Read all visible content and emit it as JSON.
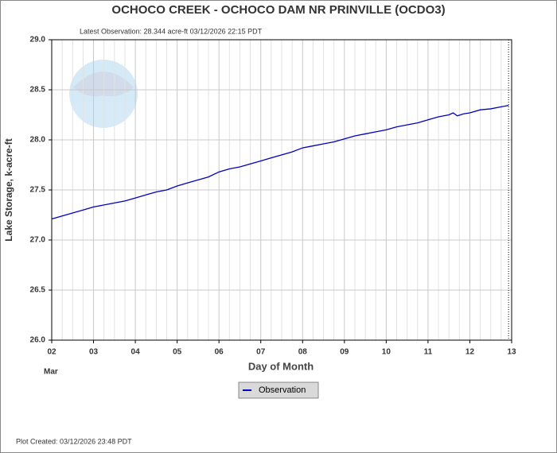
{
  "chart_data": {
    "type": "line",
    "title": "OCHOCO CREEK - OCHOCO DAM  NR PRINVILLE  (OCDO3)",
    "subtitle": "Latest Observation: 28.344 acre-ft 03/12/2026 22:15 PDT",
    "y_label": "Lake Storage, k-acre-ft",
    "x_label": "Day of Month",
    "x_month": "Mar",
    "footer": "Plot Created: 03/12/2026 23:48 PDT",
    "xlim": [
      2,
      13
    ],
    "xticks": [
      {
        "value": 2,
        "label": "02"
      },
      {
        "value": 3,
        "label": "03"
      },
      {
        "value": 4,
        "label": "04"
      },
      {
        "value": 5,
        "label": "05"
      },
      {
        "value": 6,
        "label": "06"
      },
      {
        "value": 7,
        "label": "07"
      },
      {
        "value": 8,
        "label": "08"
      },
      {
        "value": 9,
        "label": "09"
      },
      {
        "value": 10,
        "label": "10"
      },
      {
        "value": 11,
        "label": "11"
      },
      {
        "value": 12,
        "label": "12"
      },
      {
        "value": 13,
        "label": "13"
      }
    ],
    "ylim": [
      26,
      29
    ],
    "yticks": [
      {
        "value": 26,
        "label": "26.0"
      },
      {
        "value": 26.5,
        "label": "26.5"
      },
      {
        "value": 27,
        "label": "27.0"
      },
      {
        "value": 27.5,
        "label": "27.5"
      },
      {
        "value": 28,
        "label": "28.0"
      },
      {
        "value": 28.5,
        "label": "28.5"
      },
      {
        "value": 29,
        "label": "29.0"
      }
    ],
    "grid": true,
    "legend": "bottom",
    "x": [
      2,
      2.25,
      2.5,
      2.75,
      3,
      3.25,
      3.5,
      3.75,
      4,
      4.25,
      4.5,
      4.75,
      5,
      5.25,
      5.5,
      5.75,
      6,
      6.25,
      6.5,
      6.75,
      7,
      7.25,
      7.5,
      7.75,
      8,
      8.25,
      8.5,
      8.75,
      9,
      9.25,
      9.5,
      9.75,
      10,
      10.25,
      10.5,
      10.75,
      11,
      11.25,
      11.5,
      11.6,
      11.7,
      11.85,
      12,
      12.25,
      12.5,
      12.75,
      12.927
    ],
    "series": [
      {
        "name": "Observation",
        "color": "#0000cc",
        "values": [
          27.21,
          27.24,
          27.27,
          27.3,
          27.33,
          27.35,
          27.37,
          27.39,
          27.42,
          27.45,
          27.48,
          27.5,
          27.54,
          27.57,
          27.6,
          27.63,
          27.68,
          27.71,
          27.73,
          27.76,
          27.79,
          27.82,
          27.85,
          27.88,
          27.92,
          27.94,
          27.96,
          27.98,
          28.01,
          28.04,
          28.06,
          28.08,
          28.1,
          28.13,
          28.15,
          28.17,
          28.2,
          28.23,
          28.25,
          28.27,
          28.24,
          28.26,
          28.27,
          28.3,
          28.31,
          28.33,
          28.344
        ]
      }
    ]
  }
}
